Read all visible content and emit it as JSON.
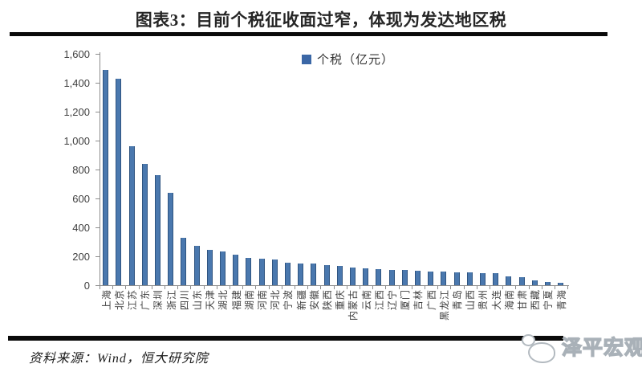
{
  "title": "图表3：目前个税征收面过窄，体现为发达地区税",
  "legend": {
    "label": "个税（亿元）",
    "marker_color": "#3b67a6"
  },
  "source": "资料来源：Wind，恒大研究院",
  "watermark": {
    "text": "泽平宏观",
    "icon": "speech-bubble-logo"
  },
  "colors": {
    "bar": "#4a78ae",
    "bar_edge": "#2f5480",
    "axis": "#8c8c8c",
    "rule": "#0a0a0a",
    "title_text": "#262626"
  },
  "chart_data": {
    "type": "bar",
    "title": "图表3：目前个税征收面过窄，体现为发达地区税",
    "legend": [
      "个税（亿元）"
    ],
    "legend_position": "top-center",
    "grid": false,
    "xlabel": "",
    "ylabel": "",
    "ylim": [
      0,
      1600
    ],
    "ytick_interval": 200,
    "ytick_labels": [
      "0",
      "200",
      "400",
      "600",
      "800",
      "1,000",
      "1,200",
      "1,400",
      "1,600"
    ],
    "categories": [
      "上海",
      "北京",
      "江苏",
      "广东",
      "深圳",
      "浙江",
      "四川",
      "山东",
      "天津",
      "湖北",
      "福建",
      "湖南",
      "河南",
      "河北",
      "宁波",
      "新疆",
      "安徽",
      "陕西",
      "重庆",
      "内蒙古",
      "云南",
      "江西",
      "辽宁",
      "厦门",
      "吉林",
      "广西",
      "黑龙江",
      "青岛",
      "山西",
      "贵州",
      "大连",
      "海南",
      "甘肃",
      "西藏",
      "宁夏",
      "青海"
    ],
    "values": [
      1490,
      1430,
      960,
      840,
      760,
      640,
      325,
      270,
      243,
      232,
      210,
      190,
      183,
      178,
      155,
      150,
      148,
      140,
      136,
      120,
      117,
      111,
      108,
      105,
      101,
      96,
      93,
      90,
      88,
      86,
      82,
      62,
      58,
      33,
      22,
      18
    ]
  }
}
